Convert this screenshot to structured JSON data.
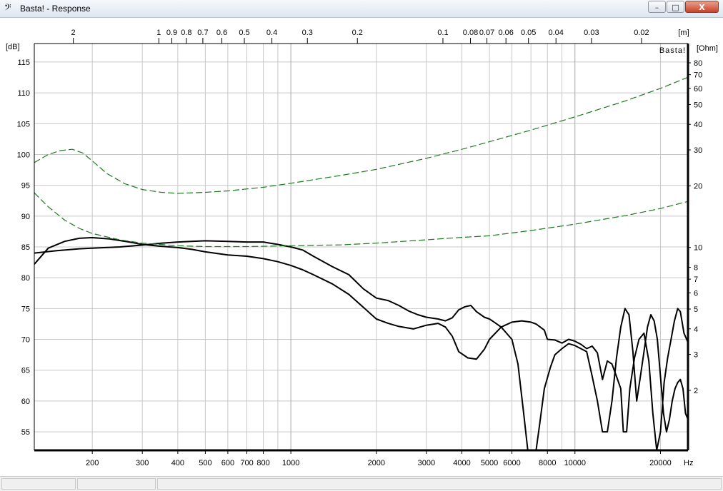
{
  "window": {
    "icon": "bass-clef-icon",
    "title": "Basta! - Response",
    "minimize_label": "–",
    "maximize_label": "□",
    "close_label": "X"
  },
  "status": [
    "",
    "",
    ""
  ],
  "chart_data": {
    "type": "line",
    "watermark": "Basta!",
    "xscale": "log",
    "xlim": [
      125,
      25000
    ],
    "x_unit": "Hz",
    "x_ticks": [
      {
        "v": 200,
        "label": "200"
      },
      {
        "v": 300,
        "label": "300"
      },
      {
        "v": 400,
        "label": "400"
      },
      {
        "v": 500,
        "label": "500"
      },
      {
        "v": 600,
        "label": "600"
      },
      {
        "v": 700,
        "label": "700"
      },
      {
        "v": 800,
        "label": "800"
      },
      {
        "v": 1000,
        "label": "1000"
      },
      {
        "v": 2000,
        "label": "2000"
      },
      {
        "v": 3000,
        "label": "3000"
      },
      {
        "v": 4000,
        "label": "4000"
      },
      {
        "v": 5000,
        "label": "5000"
      },
      {
        "v": 6000,
        "label": "6000"
      },
      {
        "v": 8000,
        "label": "8000"
      },
      {
        "v": 10000,
        "label": "10000"
      },
      {
        "v": 20000,
        "label": "20000"
      }
    ],
    "wavelength_unit": "[m]",
    "wavelength_ticks": [
      {
        "v": 2,
        "label": "2"
      },
      {
        "v": 1,
        "label": "1"
      },
      {
        "v": 0.9,
        "label": "0.9"
      },
      {
        "v": 0.8,
        "label": "0.8"
      },
      {
        "v": 0.7,
        "label": "0.7"
      },
      {
        "v": 0.6,
        "label": "0.6"
      },
      {
        "v": 0.5,
        "label": "0.5"
      },
      {
        "v": 0.4,
        "label": "0.4"
      },
      {
        "v": 0.3,
        "label": "0.3"
      },
      {
        "v": 0.2,
        "label": "0.2"
      },
      {
        "v": 0.1,
        "label": "0.1"
      },
      {
        "v": 0.08,
        "label": "0.08"
      },
      {
        "v": 0.07,
        "label": "0.07"
      },
      {
        "v": 0.06,
        "label": "0.06"
      },
      {
        "v": 0.05,
        "label": "0.05"
      },
      {
        "v": 0.04,
        "label": "0.04"
      },
      {
        "v": 0.03,
        "label": "0.03"
      },
      {
        "v": 0.02,
        "label": "0.02"
      }
    ],
    "ylabel": "[dB]",
    "ylim": [
      52,
      118
    ],
    "y_ticks": [
      55,
      60,
      65,
      70,
      75,
      80,
      85,
      90,
      95,
      100,
      105,
      110,
      115
    ],
    "y2label": "[Ohm]",
    "y2scale": "log",
    "y2_ticks": [
      {
        "v": 80,
        "label": "80"
      },
      {
        "v": 70,
        "label": "70"
      },
      {
        "v": 60,
        "label": "60"
      },
      {
        "v": 50,
        "label": "50"
      },
      {
        "v": 40,
        "label": "40"
      },
      {
        "v": 30,
        "label": "30"
      },
      {
        "v": 20,
        "label": "20"
      },
      {
        "v": 10,
        "label": "10"
      },
      {
        "v": 8,
        "label": "8"
      },
      {
        "v": 7,
        "label": "7"
      },
      {
        "v": 6,
        "label": "6"
      },
      {
        "v": 5,
        "label": "5"
      },
      {
        "v": 4,
        "label": "4"
      },
      {
        "v": 3,
        "label": "3"
      },
      {
        "v": 2,
        "label": "2"
      }
    ],
    "grid": true,
    "colors": {
      "spl": "#000000",
      "impedance": "#1e7a1e",
      "grid": "#c8c8c8"
    },
    "series": [
      {
        "kind": "spl",
        "style": "solid",
        "points": [
          [
            125,
            82.2
          ],
          [
            140,
            84.8
          ],
          [
            160,
            85.9
          ],
          [
            180,
            86.4
          ],
          [
            200,
            86.5
          ],
          [
            230,
            86.3
          ],
          [
            270,
            85.8
          ],
          [
            300,
            85.4
          ],
          [
            350,
            85.1
          ],
          [
            400,
            84.9
          ],
          [
            450,
            84.6
          ],
          [
            500,
            84.2
          ],
          [
            600,
            83.7
          ],
          [
            700,
            83.5
          ],
          [
            800,
            83.1
          ],
          [
            900,
            82.6
          ],
          [
            1000,
            82.0
          ],
          [
            1100,
            81.3
          ],
          [
            1200,
            80.5
          ],
          [
            1400,
            79.0
          ],
          [
            1600,
            77.3
          ],
          [
            1800,
            75.2
          ],
          [
            2000,
            73.3
          ],
          [
            2200,
            72.6
          ],
          [
            2400,
            72.1
          ],
          [
            2700,
            71.7
          ],
          [
            3000,
            72.3
          ],
          [
            3300,
            72.6
          ],
          [
            3500,
            72.0
          ],
          [
            3700,
            70.5
          ],
          [
            3900,
            68.0
          ],
          [
            4200,
            67.0
          ],
          [
            4500,
            66.8
          ],
          [
            4800,
            68.4
          ],
          [
            5000,
            70.0
          ],
          [
            5500,
            72.0
          ],
          [
            6000,
            72.8
          ],
          [
            6500,
            73.0
          ],
          [
            7000,
            72.8
          ],
          [
            7300,
            72.5
          ],
          [
            7800,
            71.5
          ],
          [
            8000,
            70.0
          ],
          [
            8500,
            69.9
          ],
          [
            9000,
            69.4
          ],
          [
            9500,
            70.0
          ],
          [
            10000,
            69.7
          ],
          [
            10500,
            69.2
          ],
          [
            11000,
            68.5
          ],
          [
            11500,
            68.9
          ],
          [
            12000,
            67.8
          ],
          [
            12500,
            63.5
          ],
          [
            13000,
            66.5
          ],
          [
            13500,
            66.0
          ],
          [
            14000,
            64.0
          ],
          [
            14500,
            62.0
          ],
          [
            14800,
            55.0
          ],
          [
            15200,
            55.0
          ],
          [
            15600,
            62.0
          ],
          [
            16200,
            67.0
          ],
          [
            16800,
            70.0
          ],
          [
            17500,
            71.0
          ],
          [
            18200,
            66.5
          ],
          [
            18800,
            58.0
          ],
          [
            19400,
            52.0
          ],
          [
            20000,
            55.0
          ],
          [
            20600,
            63.0
          ],
          [
            21200,
            67.0
          ],
          [
            21800,
            70.0
          ],
          [
            22400,
            73.0
          ],
          [
            23000,
            75.0
          ],
          [
            23500,
            74.5
          ],
          [
            24200,
            71.0
          ],
          [
            25000,
            69.5
          ]
        ]
      },
      {
        "kind": "spl",
        "style": "solid",
        "points": [
          [
            125,
            84.0
          ],
          [
            150,
            84.4
          ],
          [
            180,
            84.7
          ],
          [
            200,
            84.8
          ],
          [
            250,
            85.0
          ],
          [
            300,
            85.3
          ],
          [
            350,
            85.6
          ],
          [
            400,
            85.8
          ],
          [
            500,
            86.0
          ],
          [
            600,
            85.9
          ],
          [
            700,
            85.8
          ],
          [
            800,
            85.8
          ],
          [
            900,
            85.4
          ],
          [
            1000,
            85.0
          ],
          [
            1100,
            84.5
          ],
          [
            1200,
            83.5
          ],
          [
            1400,
            81.8
          ],
          [
            1600,
            80.5
          ],
          [
            1800,
            78.2
          ],
          [
            2000,
            76.7
          ],
          [
            2200,
            76.3
          ],
          [
            2400,
            75.5
          ],
          [
            2600,
            74.6
          ],
          [
            2800,
            74.0
          ],
          [
            3000,
            73.6
          ],
          [
            3300,
            73.3
          ],
          [
            3500,
            73.0
          ],
          [
            3700,
            73.5
          ],
          [
            3900,
            74.8
          ],
          [
            4100,
            75.3
          ],
          [
            4300,
            75.5
          ],
          [
            4500,
            74.5
          ],
          [
            4800,
            73.6
          ],
          [
            5000,
            73.3
          ],
          [
            5200,
            72.8
          ],
          [
            5500,
            72.0
          ],
          [
            6000,
            70.0
          ],
          [
            6300,
            66.0
          ],
          [
            6600,
            58.0
          ],
          [
            6900,
            50.0
          ],
          [
            7200,
            50.0
          ],
          [
            7500,
            56.0
          ],
          [
            7800,
            62.0
          ],
          [
            8200,
            65.5
          ],
          [
            8500,
            67.5
          ],
          [
            9000,
            68.5
          ],
          [
            9500,
            69.3
          ],
          [
            10000,
            69.0
          ],
          [
            11000,
            68.0
          ],
          [
            11500,
            64.0
          ],
          [
            12000,
            60.0
          ],
          [
            12500,
            55.0
          ],
          [
            13000,
            55.0
          ],
          [
            13500,
            60.0
          ],
          [
            14000,
            67.0
          ],
          [
            14500,
            72.0
          ],
          [
            15000,
            75.0
          ],
          [
            15500,
            74.0
          ],
          [
            16000,
            68.0
          ],
          [
            16500,
            60.0
          ],
          [
            17000,
            64.0
          ],
          [
            17500,
            68.0
          ],
          [
            18000,
            72.0
          ],
          [
            18500,
            74.0
          ],
          [
            19000,
            73.0
          ],
          [
            19500,
            70.0
          ],
          [
            20000,
            64.0
          ],
          [
            20500,
            58.0
          ],
          [
            21000,
            55.0
          ],
          [
            21500,
            57.0
          ],
          [
            22000,
            60.0
          ],
          [
            22500,
            62.0
          ],
          [
            23000,
            63.0
          ],
          [
            23500,
            63.5
          ],
          [
            24000,
            62.0
          ],
          [
            24500,
            58.0
          ],
          [
            25000,
            57.0
          ]
        ]
      },
      {
        "kind": "impedance",
        "style": "dashed",
        "points": [
          [
            125,
            26
          ],
          [
            140,
            28.5
          ],
          [
            155,
            29.8
          ],
          [
            170,
            30.2
          ],
          [
            185,
            29.0
          ],
          [
            200,
            26.5
          ],
          [
            225,
            23.0
          ],
          [
            260,
            20.5
          ],
          [
            300,
            19.2
          ],
          [
            350,
            18.6
          ],
          [
            400,
            18.4
          ],
          [
            500,
            18.6
          ],
          [
            600,
            18.9
          ],
          [
            800,
            19.7
          ],
          [
            1000,
            20.6
          ],
          [
            1500,
            22.5
          ],
          [
            2000,
            24.1
          ],
          [
            3000,
            27.3
          ],
          [
            4000,
            30.2
          ],
          [
            5000,
            32.9
          ],
          [
            7000,
            37.5
          ],
          [
            10000,
            43.5
          ],
          [
            15000,
            52.0
          ],
          [
            20000,
            60.0
          ],
          [
            25000,
            68.0
          ]
        ]
      },
      {
        "kind": "impedance",
        "style": "dashed",
        "points": [
          [
            125,
            18.5
          ],
          [
            140,
            15.8
          ],
          [
            160,
            13.6
          ],
          [
            180,
            12.4
          ],
          [
            200,
            11.7
          ],
          [
            250,
            10.9
          ],
          [
            300,
            10.5
          ],
          [
            400,
            10.2
          ],
          [
            500,
            10.1
          ],
          [
            700,
            10.1
          ],
          [
            1000,
            10.2
          ],
          [
            1500,
            10.3
          ],
          [
            2000,
            10.5
          ],
          [
            3000,
            10.9
          ],
          [
            4000,
            11.2
          ],
          [
            5000,
            11.4
          ],
          [
            7000,
            12.1
          ],
          [
            10000,
            13.0
          ],
          [
            15000,
            14.3
          ],
          [
            20000,
            15.5
          ],
          [
            25000,
            16.8
          ]
        ]
      }
    ]
  }
}
